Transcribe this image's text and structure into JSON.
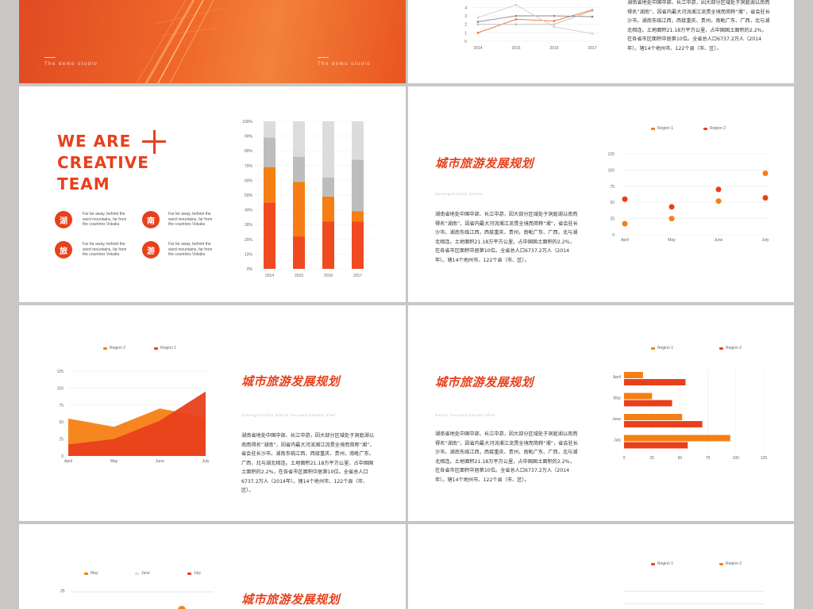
{
  "slide1": {
    "studio_left": "The demo studio",
    "studio_right": "The demo studio"
  },
  "slide2": {
    "chart_data": {
      "type": "line",
      "categories": [
        "2014",
        "2015",
        "2016",
        "2017"
      ],
      "y_ticks": [
        "0",
        "1",
        "2",
        "3",
        "4"
      ],
      "series": [
        {
          "values": [
            1.0,
            2.6,
            2.4,
            3.7
          ],
          "color": "#f06a2a"
        },
        {
          "values": [
            2.3,
            3.0,
            3.0,
            2.9
          ],
          "color": "#888888"
        },
        {
          "values": [
            2.0,
            2.0,
            2.0,
            3.6
          ],
          "color": "#bbbbbb"
        },
        {
          "values": [
            2.8,
            4.3,
            1.7,
            0.9
          ],
          "color": "#cccccc"
        }
      ],
      "ylim": [
        0,
        4.5
      ]
    },
    "paragraph": "湖南省地处中国中部、长江中游，因大部分区域处于洞庭湖以南而得名“湖南”，因省内最大河流湘江流贯全境而简称“湘”，省会驻长沙市。湖南东临江西，西接重庆、贵州，南毗广东、广西，北与湖北相连。土地面积21.18万平方公里，占中国国土面积的2.2%，在各省市区面积中居第10位。全省总人口6737.2万人（2014年）。辖14个地州市、122个县（市、区）。"
  },
  "slide3": {
    "title_line1": "WE ARE",
    "title_line2": "CREATIVE",
    "title_line3": "TEAM",
    "items": [
      {
        "char": "湖",
        "text": "Far far away, behind the word mountains, far from the countries Vokalia"
      },
      {
        "char": "南",
        "text": "Far far away, behind the word mountains, far from the countries Vokalia"
      },
      {
        "char": "旅",
        "text": "Far far away, behind the word mountains, far from the countries Vokalia"
      },
      {
        "char": "游",
        "text": "Far far away, behind the word mountains, far from the countries Vokalia"
      }
    ],
    "chart_data": {
      "type": "bar",
      "stacked": true,
      "categories": [
        "2014",
        "2015",
        "2016",
        "2017"
      ],
      "y_ticks": [
        "0%",
        "10%",
        "20%",
        "30%",
        "40%",
        "50%",
        "60%",
        "70%",
        "80%",
        "90%",
        "100%"
      ],
      "series": [
        {
          "values": [
            45,
            22,
            32,
            32
          ],
          "color": "#f04a20"
        },
        {
          "values": [
            24,
            37,
            17,
            7
          ],
          "color": "#f57f14"
        },
        {
          "values": [
            20,
            17,
            13,
            35
          ],
          "color": "#bdbdbd"
        },
        {
          "values": [
            11,
            24,
            38,
            26
          ],
          "color": "#dcdcdc"
        }
      ],
      "ylim": [
        0,
        100
      ]
    }
  },
  "slide4": {
    "title": "城市旅游发展规划",
    "subtitle": "Synergistically matrix",
    "paragraph": "湖南省地处中国中部、长江中游，因大部分区域处于洞庭湖以南而得名“湖南”，因省内最大河流湘江流贯全境而简称“湘”，省会驻长沙市。湖南东临江西，西接重庆、贵州，南毗广东、广西，北与湖北相连。土地面积21.18万平方公里，占中国国土面积的2.2%，在各省市区面积中居第10位。全省总人口6737.2万人（2014年）。辖14个地州市、122个县（市、区）。",
    "chart_data": {
      "type": "scatter",
      "categories": [
        "April",
        "May",
        "June",
        "July"
      ],
      "y_ticks": [
        "0",
        "25",
        "50",
        "75",
        "100",
        "125"
      ],
      "series": [
        {
          "name": "Region 1",
          "values": [
            55,
            43,
            70,
            57
          ],
          "color": "#e8401c"
        },
        {
          "name": "Region 2",
          "values": [
            17,
            25,
            52,
            95
          ],
          "color": "#f57f14"
        }
      ],
      "ylim": [
        0,
        125
      ]
    }
  },
  "slide5": {
    "title": "城市旅游发展规划",
    "subtitle": "Synergistically matrix focused portals after",
    "paragraph": "湖南省地处中国中部、长江中游，因大部分区域处于洞庭湖以南而得名“湖南”，因省内最大河流湘江流贯全境而简称“湘”，省会驻长沙市。湖南东临江西，西接重庆、贵州，南毗广东、广西，北与湖北相连。土地面积21.18万平方公里，占中国国土面积的2.2%，在各省市区面积中居第10位。全省总人口6737.2万人（2014年）。辖14个地州市、122个县（市、区）。",
    "chart_data": {
      "type": "area",
      "categories": [
        "April",
        "May",
        "June",
        "July"
      ],
      "y_ticks": [
        "0",
        "25",
        "50",
        "75",
        "100",
        "125"
      ],
      "series": [
        {
          "name": "Region 2",
          "values": [
            55,
            43,
            70,
            57
          ],
          "color": "#f57f14"
        },
        {
          "name": "Region 1",
          "values": [
            17,
            25,
            52,
            95
          ],
          "color": "#e8401c"
        }
      ],
      "ylim": [
        0,
        125
      ]
    }
  },
  "slide6": {
    "title": "城市旅游发展规划",
    "subtitle": "matrix focused portals after",
    "paragraph": "湖南省地处中国中部、长江中游，因大部分区域处于洞庭湖以南而得名“湖南”，因省内最大河流湘江流贯全境而简称“湘”，省会驻长沙市。湖南东临江西，西接重庆、贵州，南毗广东、广西，北与湖北相连。土地面积21.18万平方公里，占中国国土面积的2.2%，在各省市区面积中居第10位。全省总人口6737.2万人（2014年）。辖14个地州市、122个县（市、区）。",
    "chart_data": {
      "type": "bar",
      "orientation": "horizontal",
      "categories": [
        "April",
        "May",
        "June",
        "July"
      ],
      "x_ticks": [
        "0",
        "25",
        "50",
        "75",
        "100",
        "125"
      ],
      "series": [
        {
          "name": "Region 1",
          "values": [
            17,
            25,
            52,
            95
          ],
          "color": "#f57f14"
        },
        {
          "name": "Region 2",
          "values": [
            55,
            43,
            70,
            57
          ],
          "color": "#e8401c"
        }
      ],
      "xlim": [
        0,
        125
      ]
    }
  },
  "slide7": {
    "title": "城市旅游发展规划",
    "legend": [
      "May",
      "June",
      "July"
    ],
    "y_tick": "25"
  },
  "slide8": {
    "legend": [
      "Region 1",
      "Region 2"
    ]
  }
}
